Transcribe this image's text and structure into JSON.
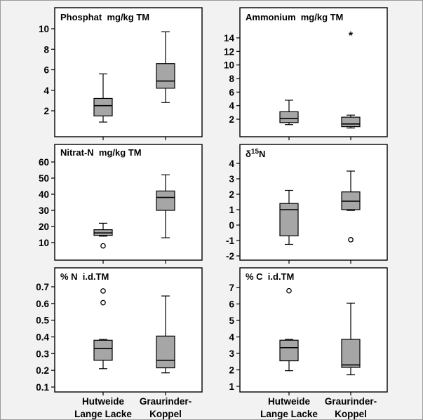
{
  "page": {
    "background": "#f2f2f2",
    "box_fill": "#a6a6a6"
  },
  "chart_data": [
    {
      "type": "box",
      "title": "Phosphat  mg/kg TM",
      "yticks": [
        2,
        4,
        6,
        8,
        10
      ],
      "ylim": [
        0.5,
        10.8
      ],
      "categories": [
        "Hutweide Lange Lacke",
        "Graurinder-Koppel"
      ],
      "boxes": [
        {
          "whisker_low": 0.9,
          "q1": 1.5,
          "median": 2.5,
          "q3": 3.2,
          "whisker_high": 5.6,
          "outliers": [],
          "extremes": []
        },
        {
          "whisker_low": 2.8,
          "q1": 4.2,
          "median": 4.9,
          "q3": 6.6,
          "whisker_high": 9.7,
          "outliers": [],
          "extremes": []
        }
      ]
    },
    {
      "type": "box",
      "title": "Ammonium  mg/kg TM",
      "yticks": [
        2,
        4,
        6,
        8,
        10,
        12,
        14
      ],
      "ylim": [
        0,
        16
      ],
      "categories": [
        "Hutweide Lange Lacke",
        "Graurinder-Koppel"
      ],
      "boxes": [
        {
          "whisker_low": 1.2,
          "q1": 1.5,
          "median": 2.1,
          "q3": 3.1,
          "whisker_high": 4.8,
          "outliers": [],
          "extremes": []
        },
        {
          "whisker_low": 0.7,
          "q1": 0.9,
          "median": 1.3,
          "q3": 2.3,
          "whisker_high": 2.6,
          "outliers": [],
          "extremes": [
            14.5
          ]
        }
      ]
    },
    {
      "type": "box",
      "title": "Nitrat-N  mg/kg TM",
      "yticks": [
        10,
        20,
        30,
        40,
        50,
        60
      ],
      "ylim": [
        3,
        63
      ],
      "categories": [
        "Hutweide Lange Lacke",
        "Graurinder-Koppel"
      ],
      "boxes": [
        {
          "whisker_low": 14,
          "q1": 14.5,
          "median": 16,
          "q3": 18,
          "whisker_high": 22,
          "outliers": [
            8
          ],
          "extremes": []
        },
        {
          "whisker_low": 13,
          "q1": 30,
          "median": 38,
          "q3": 42,
          "whisker_high": 52,
          "outliers": [],
          "extremes": []
        }
      ]
    },
    {
      "type": "box",
      "title": "δ¹⁵N",
      "title_main": "δ",
      "title_sup": "15",
      "title_tail": "N",
      "yticks": [
        -2,
        -1,
        0,
        1,
        2,
        3,
        4
      ],
      "ylim": [
        -2.3,
        4.4
      ],
      "categories": [
        "Hutweide Lange Lacke",
        "Graurinder-Koppel"
      ],
      "boxes": [
        {
          "whisker_low": -1.25,
          "q1": -0.7,
          "median": 1.0,
          "q3": 1.4,
          "whisker_high": 2.25,
          "outliers": [],
          "extremes": []
        },
        {
          "whisker_low": 0.95,
          "q1": 1.0,
          "median": 1.55,
          "q3": 2.15,
          "whisker_high": 3.5,
          "outliers": [
            -0.95
          ],
          "extremes": []
        }
      ]
    },
    {
      "type": "box",
      "title": "% N  i.d.TM",
      "yticks": [
        0.1,
        0.2,
        0.3,
        0.4,
        0.5,
        0.6,
        0.7
      ],
      "ylim": [
        0.08,
        0.74
      ],
      "categories": [
        "Hutweide Lange Lacke",
        "Graurinder-Koppel"
      ],
      "boxes": [
        {
          "whisker_low": 0.21,
          "q1": 0.26,
          "median": 0.33,
          "q3": 0.38,
          "whisker_high": 0.385,
          "outliers": [
            0.605,
            0.675
          ],
          "extremes": []
        },
        {
          "whisker_low": 0.185,
          "q1": 0.215,
          "median": 0.26,
          "q3": 0.405,
          "whisker_high": 0.645,
          "outliers": [],
          "extremes": []
        }
      ]
    },
    {
      "type": "box",
      "title": "% C  i.d.TM",
      "yticks": [
        1,
        2,
        3,
        4,
        5,
        6,
        7
      ],
      "ylim": [
        0.8,
        7.5
      ],
      "categories": [
        "Hutweide Lange Lacke",
        "Graurinder-Koppel"
      ],
      "boxes": [
        {
          "whisker_low": 1.95,
          "q1": 2.55,
          "median": 3.35,
          "q3": 3.8,
          "whisker_high": 3.85,
          "outliers": [
            6.8
          ],
          "extremes": []
        },
        {
          "whisker_low": 1.7,
          "q1": 2.15,
          "median": 2.3,
          "q3": 3.85,
          "whisker_high": 6.05,
          "outliers": [],
          "extremes": []
        }
      ]
    }
  ],
  "x_labels": [
    {
      "line1": "Hutweide",
      "line2": "Lange Lacke"
    },
    {
      "line1": "Graurinder-",
      "line2": "Koppel"
    }
  ]
}
